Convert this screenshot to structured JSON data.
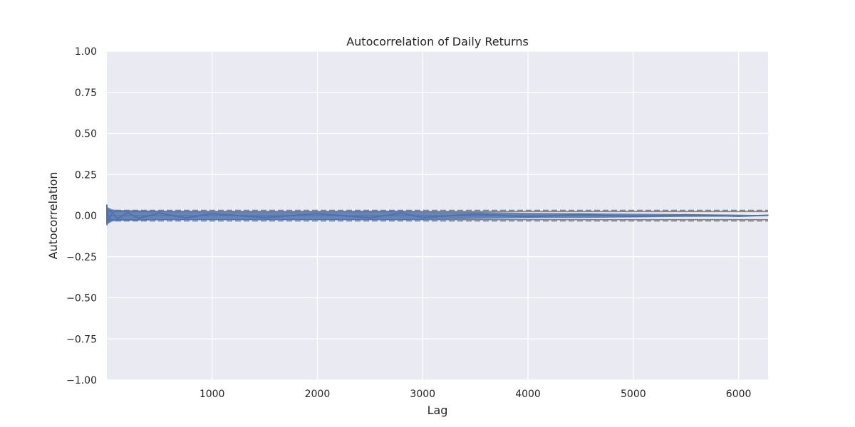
{
  "chart_data": {
    "type": "line",
    "title": "Autocorrelation of Daily Returns",
    "xlabel": "Lag",
    "ylabel": "Autocorrelation",
    "xlim": [
      1,
      6280
    ],
    "ylim": [
      -1.0,
      1.0
    ],
    "x_ticks": [
      1000,
      2000,
      3000,
      4000,
      5000,
      6000
    ],
    "x_tick_labels": [
      "1000",
      "2000",
      "3000",
      "4000",
      "5000",
      "6000"
    ],
    "y_ticks": [
      -1.0,
      -0.75,
      -0.5,
      -0.25,
      0.0,
      0.25,
      0.5,
      0.75,
      1.0
    ],
    "y_tick_labels": [
      "−1.00",
      "−0.75",
      "−0.50",
      "−0.25",
      "0.00",
      "0.25",
      "0.50",
      "0.75",
      "1.00"
    ],
    "grid": true,
    "style": "seaborn-darkgrid",
    "colors": {
      "plot_background": "#eaeaf2",
      "grid": "#ffffff",
      "series": "#4c72b0",
      "confidence_lines": "#808080"
    },
    "confidence_bands": {
      "z99": [
        -0.0325,
        0.0325
      ],
      "z95": [
        -0.0247,
        0.0247
      ]
    },
    "series": [
      {
        "x": [
          1,
          2,
          3,
          5,
          10,
          20,
          50,
          100,
          200,
          300,
          500,
          750,
          1000,
          1500,
          2000,
          2500,
          2800,
          3000,
          3500,
          4000,
          4500,
          5000,
          5500,
          6000,
          6280
        ],
        "y": [
          0.065,
          -0.055,
          0.04,
          -0.045,
          0.03,
          -0.03,
          0.02,
          -0.02,
          0.018,
          -0.016,
          0.015,
          -0.014,
          0.012,
          -0.012,
          0.012,
          -0.013,
          0.015,
          -0.012,
          0.01,
          -0.008,
          0.008,
          -0.006,
          0.005,
          -0.004,
          0.002
        ],
        "envelope": [
          {
            "x": 1,
            "lo": -0.065,
            "hi": 0.068
          },
          {
            "x": 10,
            "lo": -0.05,
            "hi": 0.05
          },
          {
            "x": 50,
            "lo": -0.035,
            "hi": 0.038
          },
          {
            "x": 100,
            "lo": -0.032,
            "hi": 0.034
          },
          {
            "x": 500,
            "lo": -0.028,
            "hi": 0.03
          },
          {
            "x": 1000,
            "lo": -0.026,
            "hi": 0.028
          },
          {
            "x": 2000,
            "lo": -0.026,
            "hi": 0.028
          },
          {
            "x": 2800,
            "lo": -0.028,
            "hi": 0.03
          },
          {
            "x": 3500,
            "lo": -0.02,
            "hi": 0.022
          },
          {
            "x": 4000,
            "lo": -0.015,
            "hi": 0.017
          },
          {
            "x": 4500,
            "lo": -0.014,
            "hi": 0.015
          },
          {
            "x": 5000,
            "lo": -0.011,
            "hi": 0.012
          },
          {
            "x": 5500,
            "lo": -0.008,
            "hi": 0.009
          },
          {
            "x": 6000,
            "lo": -0.006,
            "hi": 0.006
          },
          {
            "x": 6280,
            "lo": -0.002,
            "hi": 0.002
          }
        ]
      }
    ]
  }
}
